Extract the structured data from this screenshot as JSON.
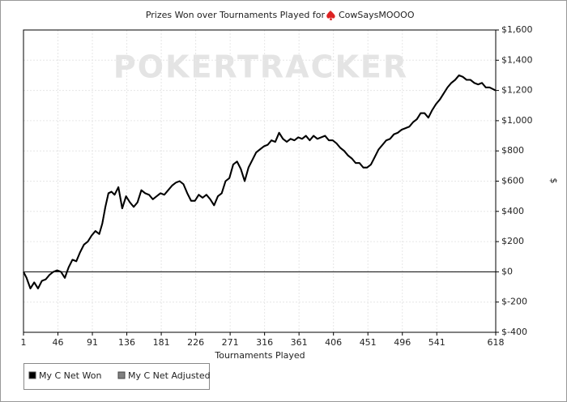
{
  "chart_data": {
    "type": "line",
    "title": "Prizes Won over Tournaments Played for",
    "player": "CowSaysMOOOO",
    "watermark": "POKERTRACKER",
    "x_label": "Tournaments Played",
    "y_label": "$",
    "x": [
      1,
      5,
      10,
      15,
      20,
      25,
      30,
      35,
      40,
      45,
      50,
      55,
      60,
      65,
      70,
      75,
      80,
      85,
      90,
      95,
      100,
      104,
      108,
      112,
      116,
      120,
      125,
      130,
      135,
      140,
      145,
      150,
      155,
      160,
      165,
      170,
      175,
      180,
      185,
      190,
      195,
      200,
      205,
      210,
      215,
      220,
      225,
      230,
      235,
      240,
      245,
      250,
      255,
      260,
      265,
      270,
      275,
      280,
      285,
      290,
      295,
      300,
      305,
      310,
      315,
      320,
      325,
      330,
      335,
      340,
      345,
      350,
      355,
      360,
      365,
      370,
      375,
      380,
      385,
      390,
      395,
      400,
      405,
      410,
      415,
      420,
      425,
      430,
      435,
      440,
      445,
      450,
      455,
      460,
      465,
      470,
      475,
      480,
      485,
      490,
      495,
      500,
      505,
      510,
      515,
      520,
      525,
      530,
      535,
      540,
      545,
      550,
      555,
      560,
      565,
      570,
      575,
      580,
      585,
      590,
      595,
      600,
      605,
      610,
      618
    ],
    "series": [
      {
        "name": "My C Net Won",
        "color": "#000000",
        "values": [
          0,
          -40,
          -110,
          -70,
          -110,
          -60,
          -50,
          -20,
          0,
          10,
          0,
          -40,
          30,
          80,
          70,
          130,
          180,
          200,
          240,
          270,
          250,
          320,
          430,
          520,
          530,
          510,
          560,
          420,
          500,
          460,
          430,
          460,
          540,
          520,
          510,
          480,
          500,
          520,
          510,
          540,
          570,
          590,
          600,
          580,
          520,
          470,
          470,
          510,
          490,
          510,
          480,
          440,
          500,
          520,
          600,
          620,
          710,
          730,
          680,
          600,
          690,
          740,
          790,
          810,
          830,
          840,
          870,
          860,
          920,
          880,
          860,
          880,
          870,
          890,
          880,
          900,
          870,
          900,
          880,
          890,
          900,
          870,
          870,
          850,
          820,
          800,
          770,
          750,
          720,
          720,
          690,
          690,
          710,
          760,
          810,
          840,
          870,
          880,
          910,
          920,
          940,
          950,
          960,
          990,
          1010,
          1050,
          1050,
          1020,
          1070,
          1110,
          1140,
          1180,
          1220,
          1250,
          1270,
          1300,
          1290,
          1270,
          1270,
          1250,
          1240,
          1250,
          1220,
          1220,
          1200
        ]
      },
      {
        "name": "My C Net Adjusted",
        "color": "#808080",
        "values": [
          0,
          -40,
          -110,
          -70,
          -110,
          -60,
          -50,
          -20,
          0,
          10,
          0,
          -40,
          30,
          80,
          70,
          130,
          180,
          200,
          240,
          270,
          250,
          320,
          430,
          520,
          530,
          510,
          560,
          420,
          500,
          460,
          430,
          460,
          540,
          520,
          510,
          480,
          500,
          520,
          510,
          540,
          570,
          590,
          600,
          580,
          520,
          470,
          470,
          510,
          490,
          510,
          480,
          440,
          500,
          520,
          600,
          620,
          710,
          730,
          680,
          600,
          690,
          740,
          790,
          810,
          830,
          840,
          870,
          860,
          920,
          880,
          860,
          880,
          870,
          890,
          880,
          900,
          870,
          900,
          880,
          890,
          900,
          870,
          870,
          850,
          820,
          800,
          770,
          750,
          720,
          720,
          690,
          690,
          710,
          760,
          810,
          840,
          870,
          880,
          910,
          920,
          940,
          950,
          960,
          990,
          1010,
          1050,
          1050,
          1020,
          1070,
          1110,
          1140,
          1180,
          1220,
          1250,
          1270,
          1300,
          1290,
          1270,
          1270,
          1250,
          1240,
          1250,
          1220,
          1220,
          1200
        ]
      }
    ],
    "xlim": [
      1,
      618
    ],
    "xticks": [
      1,
      46,
      91,
      136,
      181,
      226,
      271,
      316,
      361,
      406,
      451,
      496,
      541,
      618
    ],
    "ylim": [
      -400,
      1600
    ],
    "yticks": [
      {
        "value": -400,
        "label": "$-400"
      },
      {
        "value": -200,
        "label": "$-200"
      },
      {
        "value": 0,
        "label": "$0"
      },
      {
        "value": 200,
        "label": "$200"
      },
      {
        "value": 400,
        "label": "$400"
      },
      {
        "value": 600,
        "label": "$600"
      },
      {
        "value": 800,
        "label": "$800"
      },
      {
        "value": 1000,
        "label": "$1,000"
      },
      {
        "value": 1200,
        "label": "$1,200"
      },
      {
        "value": 1400,
        "label": "$1,400"
      },
      {
        "value": 1600,
        "label": "$1,600"
      }
    ],
    "grid": true
  }
}
